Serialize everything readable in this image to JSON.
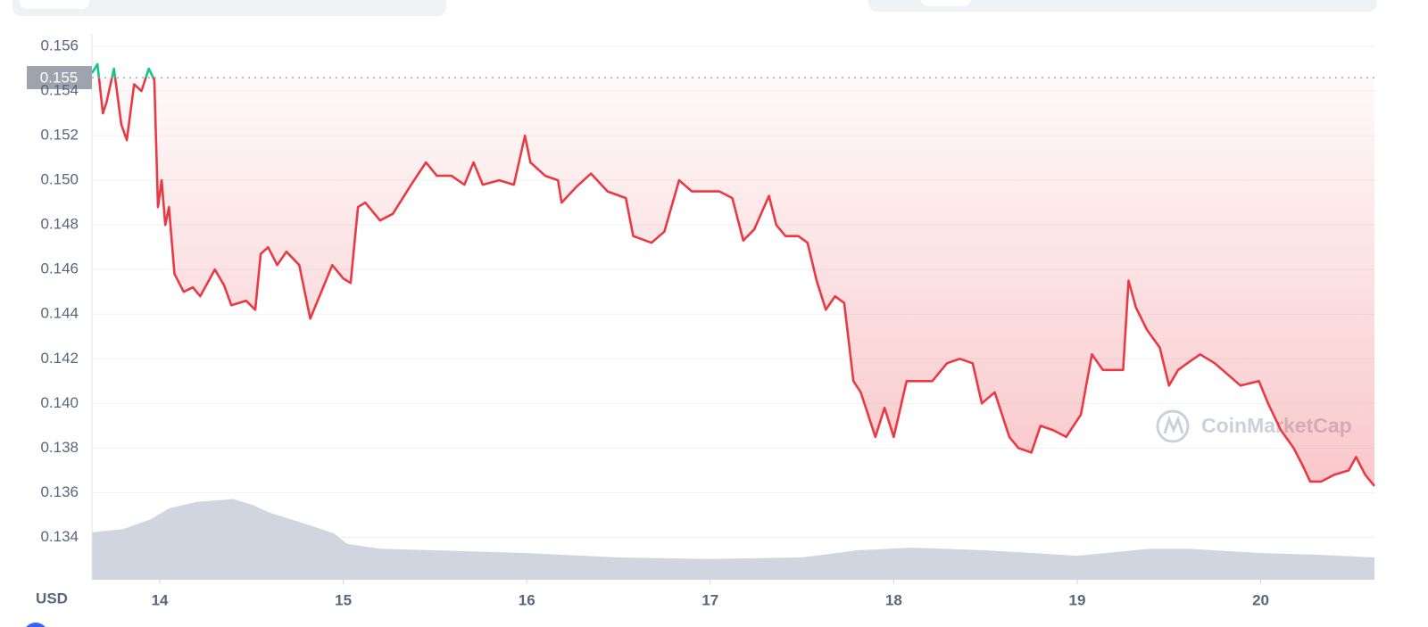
{
  "chart_data": {
    "type": "line",
    "currency": "USD",
    "watermark": "CoinMarketCap",
    "xlim": [
      13.63,
      20.62
    ],
    "xticks": [
      14,
      15,
      16,
      17,
      18,
      19,
      20
    ],
    "ylim": [
      0.1321,
      0.1565
    ],
    "yticks": [
      0.156,
      0.154,
      0.152,
      {
        "value": 0.15,
        "label": "0.150"
      },
      0.148,
      0.146,
      0.144,
      0.142,
      {
        "value": 0.14,
        "label": "0.140"
      },
      0.138,
      0.136,
      0.134
    ],
    "grid": true,
    "reference": {
      "value": 0.1546,
      "label": "0.155"
    },
    "up_color": "#16c784",
    "down_color": "#ea3943",
    "x": [
      13.63,
      13.66,
      13.69,
      13.71,
      13.75,
      13.79,
      13.82,
      13.86,
      13.9,
      13.94,
      13.97,
      13.99,
      14.01,
      14.03,
      14.05,
      14.08,
      14.13,
      14.18,
      14.22,
      14.3,
      14.35,
      14.39,
      14.47,
      14.52,
      14.55,
      14.59,
      14.64,
      14.69,
      14.76,
      14.82,
      14.88,
      14.94,
      15.0,
      15.04,
      15.08,
      15.12,
      15.2,
      15.27,
      15.37,
      15.45,
      15.51,
      15.59,
      15.66,
      15.71,
      15.76,
      15.85,
      15.93,
      15.99,
      16.02,
      16.1,
      16.17,
      16.19,
      16.27,
      16.35,
      16.44,
      16.54,
      16.58,
      16.68,
      16.75,
      16.83,
      16.9,
      16.97,
      17.05,
      17.12,
      17.18,
      17.24,
      17.32,
      17.36,
      17.41,
      17.48,
      17.53,
      17.58,
      17.63,
      17.68,
      17.73,
      17.78,
      17.82,
      17.9,
      17.95,
      18.0,
      18.07,
      18.14,
      18.21,
      18.29,
      18.36,
      18.43,
      18.48,
      18.55,
      18.63,
      18.68,
      18.75,
      18.8,
      18.87,
      18.94,
      19.02,
      19.08,
      19.14,
      19.21,
      19.25,
      19.28,
      19.32,
      19.38,
      19.45,
      19.5,
      19.55,
      19.6,
      19.67,
      19.75,
      19.82,
      19.89,
      19.99,
      20.04,
      20.11,
      20.18,
      20.23,
      20.27,
      20.33,
      20.4,
      20.48,
      20.52,
      20.57,
      20.62
    ],
    "values": [
      0.1548,
      0.1552,
      0.153,
      0.1535,
      0.155,
      0.1525,
      0.1518,
      0.1543,
      0.154,
      0.155,
      0.1545,
      0.1488,
      0.15,
      0.148,
      0.1488,
      0.1458,
      0.145,
      0.1452,
      0.1448,
      0.146,
      0.1453,
      0.1444,
      0.1446,
      0.1442,
      0.1467,
      0.147,
      0.1462,
      0.1468,
      0.1462,
      0.1438,
      0.145,
      0.1462,
      0.1456,
      0.1454,
      0.1488,
      0.149,
      0.1482,
      0.1485,
      0.1498,
      0.1508,
      0.1502,
      0.1502,
      0.1498,
      0.1508,
      0.1498,
      0.15,
      0.1498,
      0.152,
      0.1508,
      0.1502,
      0.15,
      0.149,
      0.1497,
      0.1503,
      0.1495,
      0.1492,
      0.1475,
      0.1472,
      0.1477,
      0.15,
      0.1495,
      0.1495,
      0.1495,
      0.1492,
      0.1473,
      0.1478,
      0.1493,
      0.148,
      0.1475,
      0.1475,
      0.1472,
      0.1455,
      0.1442,
      0.1448,
      0.1445,
      0.141,
      0.1405,
      0.1385,
      0.1398,
      0.1385,
      0.141,
      0.141,
      0.141,
      0.1418,
      0.142,
      0.1418,
      0.14,
      0.1405,
      0.1385,
      0.138,
      0.1378,
      0.139,
      0.1388,
      0.1385,
      0.1395,
      0.1422,
      0.1415,
      0.1415,
      0.1415,
      0.1455,
      0.1443,
      0.1433,
      0.1425,
      0.1408,
      0.1415,
      0.1418,
      0.1422,
      0.1418,
      0.1413,
      0.1408,
      0.141,
      0.14,
      0.1388,
      0.138,
      0.1372,
      0.1365,
      0.1365,
      0.1368,
      0.137,
      0.1376,
      0.1368,
      0.1363
    ],
    "volume": {
      "color": "#d1d5e0",
      "vlim": [
        0,
        100
      ],
      "x": [
        13.63,
        13.8,
        13.95,
        14.05,
        14.2,
        14.4,
        14.5,
        14.6,
        14.8,
        14.95,
        15.02,
        15.2,
        15.5,
        16.0,
        16.5,
        17.0,
        17.5,
        17.8,
        18.1,
        18.5,
        19.0,
        19.4,
        19.6,
        20.0,
        20.3,
        20.62
      ],
      "values": [
        8.7,
        9.3,
        11.1,
        13.1,
        14.3,
        14.8,
        13.8,
        12.3,
        10.2,
        8.5,
        6.6,
        5.7,
        5.4,
        4.9,
        4.1,
        3.8,
        4.1,
        5.4,
        5.9,
        5.4,
        4.4,
        5.7,
        5.7,
        4.9,
        4.6,
        4.1
      ]
    }
  }
}
